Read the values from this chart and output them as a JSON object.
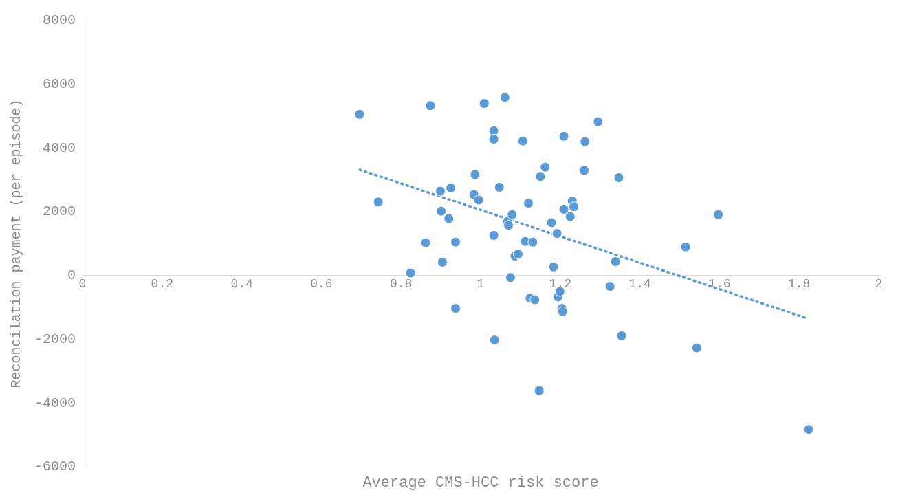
{
  "chart_data": {
    "type": "scatter",
    "xlabel": "Average CMS-HCC risk score",
    "ylabel": "Reconcilation payment (per episode)",
    "xlim": [
      0,
      2
    ],
    "xticks": [
      0,
      0.2,
      0.4,
      0.6,
      0.8,
      1,
      1.2,
      1.4,
      1.6,
      1.8,
      2
    ],
    "ylim": [
      -6000,
      8000
    ],
    "yticks": [
      -6000,
      -4000,
      -2000,
      0,
      2000,
      4000,
      6000,
      8000
    ],
    "grid": false,
    "legend": false,
    "series": [
      {
        "color": "#5b9bd5",
        "marker": "circle",
        "x": [
          0.696,
          0.743,
          0.824,
          0.862,
          0.874,
          0.899,
          0.901,
          0.904,
          0.92,
          0.925,
          0.937,
          0.937,
          0.983,
          0.986,
          0.995,
          1.009,
          1.033,
          1.033,
          1.033,
          1.035,
          1.047,
          1.061,
          1.068,
          1.07,
          1.075,
          1.079,
          1.086,
          1.094,
          1.106,
          1.112,
          1.12,
          1.124,
          1.131,
          1.136,
          1.147,
          1.15,
          1.162,
          1.178,
          1.183,
          1.192,
          1.194,
          1.199,
          1.204,
          1.206,
          1.209,
          1.209,
          1.225,
          1.23,
          1.234,
          1.26,
          1.262,
          1.295,
          1.325,
          1.339,
          1.347,
          1.354,
          1.515,
          1.543,
          1.597,
          1.824
        ],
        "values": [
          5060,
          2310,
          84,
          1030,
          5330,
          2650,
          2020,
          420,
          1790,
          2750,
          -1030,
          1050,
          2540,
          3170,
          2370,
          5400,
          4540,
          4280,
          1260,
          -2020,
          2770,
          5590,
          1700,
          1580,
          -63,
          1910,
          610,
          670,
          4220,
          1070,
          2270,
          -710,
          1050,
          -760,
          -3610,
          3110,
          3400,
          1660,
          270,
          1320,
          -670,
          -500,
          -1030,
          -1130,
          2080,
          4370,
          1850,
          2330,
          2160,
          3300,
          4200,
          4830,
          -340,
          440,
          3070,
          -1890,
          900,
          -2270,
          1910,
          -4830
        ]
      },
      {
        "type": "line",
        "color": "#5b9bd5",
        "line_style": "dotted",
        "marker": "none",
        "x": [
          0.696,
          1.815
        ],
        "values": [
          3320,
          -1320
        ]
      }
    ]
  }
}
